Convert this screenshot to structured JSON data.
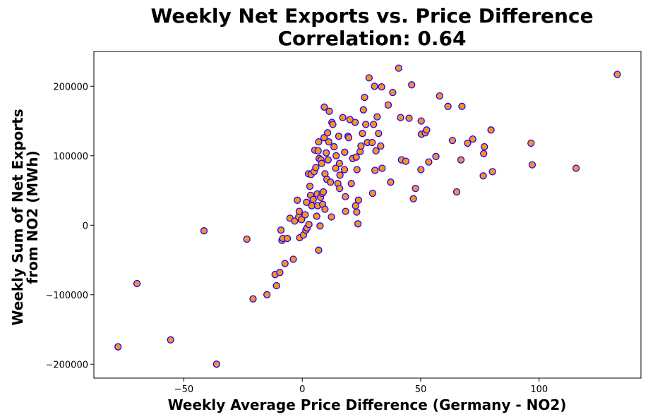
{
  "chart_data": {
    "type": "scatter",
    "title": "Weekly Net Exports vs. Price Difference",
    "subtitle": "Correlation: 0.64",
    "xlabel": "Weekly Average Price Difference (Germany - NO2)",
    "ylabel_line1": "Weekly Sum of Net Exports",
    "ylabel_line2": "from NO2 (MWh)",
    "xlim": [
      -88,
      143
    ],
    "ylim": [
      -220000,
      250000
    ],
    "x_ticks": [
      -50,
      0,
      50,
      100
    ],
    "x_tick_labels": [
      "−50",
      "0",
      "50",
      "100"
    ],
    "y_ticks": [
      -200000,
      -100000,
      0,
      100000,
      200000
    ],
    "y_tick_labels": [
      "−200000",
      "−100000",
      "0",
      "100000",
      "200000"
    ],
    "grid": false,
    "marker_fill": "#f7941d",
    "marker_edge": "#1f00ff",
    "points": [
      [
        -77.8,
        -175000
      ],
      [
        -69.8,
        -84000
      ],
      [
        -55.6,
        -165000
      ],
      [
        -41.5,
        -8000
      ],
      [
        -36.2,
        -200000
      ],
      [
        -23.4,
        -20000
      ],
      [
        -20.8,
        -106000
      ],
      [
        -14.9,
        -100000
      ],
      [
        -11.5,
        -71000
      ],
      [
        -10.9,
        -87000
      ],
      [
        -9.5,
        -68000
      ],
      [
        -9.0,
        -7000
      ],
      [
        -8.6,
        -22000
      ],
      [
        -8.2,
        -19000
      ],
      [
        -7.3,
        -55000
      ],
      [
        -6.3,
        -19000
      ],
      [
        -5.2,
        10000
      ],
      [
        -3.8,
        -49000
      ],
      [
        -3.2,
        6000
      ],
      [
        -2.1,
        36000
      ],
      [
        -1.5,
        12000
      ],
      [
        -1.1,
        -18000
      ],
      [
        -1.3,
        20000
      ],
      [
        -0.3,
        8000
      ],
      [
        0.5,
        -14000
      ],
      [
        1.2,
        15000
      ],
      [
        1.5,
        -7000
      ],
      [
        1.8,
        33000
      ],
      [
        2.0,
        -4000
      ],
      [
        2.6,
        74000
      ],
      [
        2.8,
        1000
      ],
      [
        3.2,
        56000
      ],
      [
        3.5,
        43000
      ],
      [
        3.7,
        73000
      ],
      [
        4.0,
        28000
      ],
      [
        4.6,
        37000
      ],
      [
        5.0,
        77000
      ],
      [
        5.3,
        108000
      ],
      [
        5.7,
        83000
      ],
      [
        6.1,
        13000
      ],
      [
        6.3,
        45000
      ],
      [
        6.5,
        28000
      ],
      [
        6.7,
        107000
      ],
      [
        6.9,
        -36000
      ],
      [
        6.9,
        120000
      ],
      [
        7.1,
        96000
      ],
      [
        7.5,
        -1000
      ],
      [
        7.7,
        40000
      ],
      [
        7.9,
        94000
      ],
      [
        8.2,
        89000
      ],
      [
        8.4,
        46000
      ],
      [
        8.6,
        30000
      ],
      [
        8.9,
        48000
      ],
      [
        9.2,
        126000
      ],
      [
        9.3,
        170000
      ],
      [
        9.6,
        23000
      ],
      [
        9.6,
        74000
      ],
      [
        10.1,
        104000
      ],
      [
        10.4,
        66000
      ],
      [
        10.7,
        133000
      ],
      [
        10.9,
        94000
      ],
      [
        11.2,
        120000
      ],
      [
        11.4,
        164000
      ],
      [
        11.9,
        62000
      ],
      [
        12.3,
        12000
      ],
      [
        12.5,
        148000
      ],
      [
        12.9,
        145000
      ],
      [
        13.4,
        113000
      ],
      [
        14.1,
        82000
      ],
      [
        14.3,
        100000
      ],
      [
        15.0,
        60000
      ],
      [
        15.4,
        128000
      ],
      [
        15.7,
        89000
      ],
      [
        15.8,
        53000
      ],
      [
        15.9,
        72000
      ],
      [
        17.1,
        155000
      ],
      [
        17.8,
        80000
      ],
      [
        17.9,
        105000
      ],
      [
        18.2,
        41000
      ],
      [
        18.3,
        20000
      ],
      [
        19.3,
        128000
      ],
      [
        19.6,
        126000
      ],
      [
        20.1,
        152000
      ],
      [
        20.7,
        60000
      ],
      [
        21.3,
        96000
      ],
      [
        22.3,
        148000
      ],
      [
        22.5,
        28000
      ],
      [
        22.8,
        98000
      ],
      [
        23.0,
        19000
      ],
      [
        23.1,
        80000
      ],
      [
        23.5,
        2000
      ],
      [
        23.7,
        36000
      ],
      [
        24.4,
        106000
      ],
      [
        24.8,
        114000
      ],
      [
        25.4,
        132000
      ],
      [
        25.8,
        166000
      ],
      [
        26.3,
        184000
      ],
      [
        26.8,
        145000
      ],
      [
        27.5,
        119000
      ],
      [
        28.2,
        212000
      ],
      [
        29.5,
        119000
      ],
      [
        29.7,
        46000
      ],
      [
        30.1,
        145000
      ],
      [
        30.5,
        200000
      ],
      [
        30.7,
        79000
      ],
      [
        31.1,
        107000
      ],
      [
        31.6,
        156000
      ],
      [
        32.2,
        132000
      ],
      [
        33.1,
        114000
      ],
      [
        33.5,
        199000
      ],
      [
        33.7,
        82000
      ],
      [
        36.3,
        173000
      ],
      [
        37.3,
        62000
      ],
      [
        38.2,
        191000
      ],
      [
        40.7,
        226000
      ],
      [
        41.5,
        155000
      ],
      [
        41.9,
        94000
      ],
      [
        43.7,
        92000
      ],
      [
        45.1,
        154000
      ],
      [
        46.2,
        202000
      ],
      [
        46.9,
        38000
      ],
      [
        47.8,
        53000
      ],
      [
        50.1,
        80000
      ],
      [
        50.2,
        150000
      ],
      [
        50.3,
        131000
      ],
      [
        51.9,
        133000
      ],
      [
        52.5,
        137000
      ],
      [
        53.4,
        91000
      ],
      [
        56.4,
        99000
      ],
      [
        58.0,
        186000
      ],
      [
        61.5,
        171000
      ],
      [
        63.4,
        122000
      ],
      [
        65.2,
        48000
      ],
      [
        67.0,
        94000
      ],
      [
        67.4,
        171000
      ],
      [
        69.8,
        118000
      ],
      [
        72.0,
        124000
      ],
      [
        76.4,
        71000
      ],
      [
        76.6,
        103000
      ],
      [
        76.9,
        113000
      ],
      [
        79.7,
        137000
      ],
      [
        80.3,
        77000
      ],
      [
        96.6,
        118000
      ],
      [
        97.1,
        87000
      ],
      [
        115.6,
        82000
      ],
      [
        133.0,
        217000
      ]
    ]
  }
}
